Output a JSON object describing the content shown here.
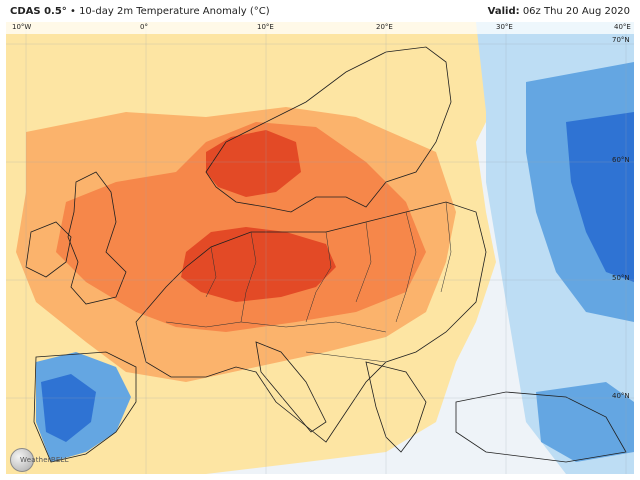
{
  "header": {
    "model": "CDAS 0.5°",
    "separator": "•",
    "product": "10-day 2m Temperature Anomaly (°C)",
    "valid_label": "Valid:",
    "valid_time": "06z Thu 20 Aug 2020"
  },
  "map": {
    "lon_labels": [
      "10°W",
      "0°",
      "10°E",
      "20°E",
      "30°E",
      "40°E"
    ],
    "lat_labels": [
      "70°N",
      "60°N",
      "50°N",
      "40°N"
    ]
  },
  "branding": {
    "text": "WeatherBELL"
  },
  "colors": {
    "strong_warm": "#e34a26",
    "warm": "#f6874a",
    "mild_warm": "#fbb36c",
    "slight_warm": "#fde5a3",
    "neutral": "#eef3f8",
    "slight_cool": "#bdddf4",
    "cool": "#64a6e2",
    "strong_cool": "#2f73d3",
    "border": "#202020"
  }
}
